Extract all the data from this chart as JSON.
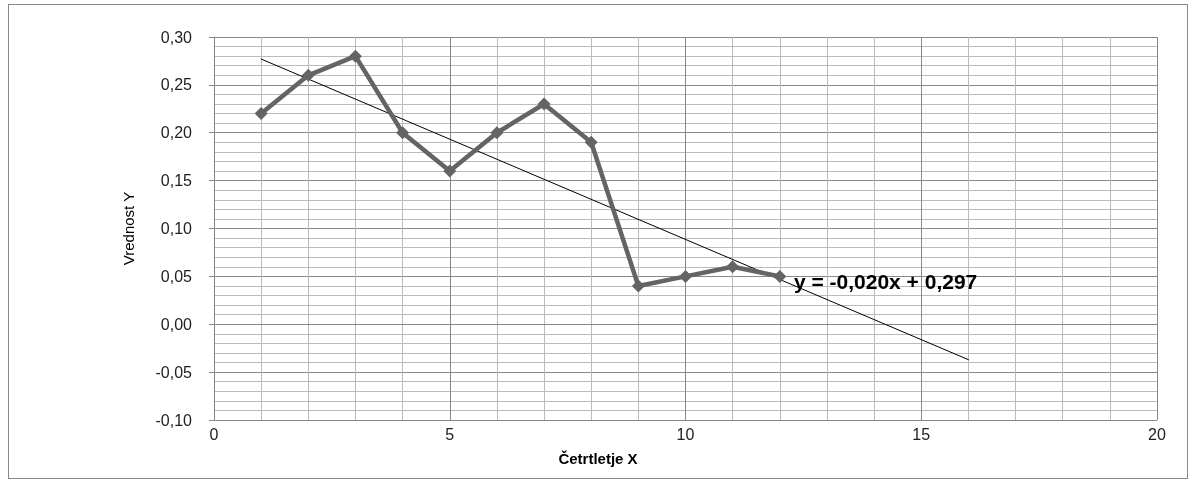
{
  "chart_data": {
    "type": "line",
    "xlabel": "Četrtletje X",
    "ylabel": "Vrednost Y",
    "x": [
      1,
      2,
      3,
      4,
      5,
      6,
      7,
      8,
      9,
      10,
      11,
      12
    ],
    "series": [
      {
        "color": "#646464",
        "values": [
          0.22,
          0.26,
          0.28,
          0.2,
          0.16,
          0.2,
          0.23,
          0.19,
          0.04,
          0.05,
          0.06,
          0.05
        ]
      },
      {
        "type": "line",
        "x": [
          1,
          16
        ],
        "values": [
          0.277,
          -0.037
        ],
        "color": "#000000",
        "marker": "none"
      }
    ],
    "xlim": [
      0,
      20
    ],
    "xticks": [
      0,
      5,
      10,
      15,
      20
    ],
    "ylim": [
      -0.1,
      0.3
    ],
    "yticks": [
      {
        "value": -0.1,
        "label": "-0,10"
      },
      {
        "value": -0.05,
        "label": "-0,05"
      },
      {
        "value": 0,
        "label": "0,00"
      },
      {
        "value": 0.05,
        "label": "0,05"
      },
      {
        "value": 0.1,
        "label": "0,10"
      },
      {
        "value": 0.15,
        "label": "0,15"
      },
      {
        "value": 0.2,
        "label": "0,20"
      },
      {
        "value": 0.25,
        "label": "0,25"
      },
      {
        "value": 0.3,
        "label": "0,30"
      }
    ],
    "annotations": [
      {
        "text": "y = -0,020x + 0,297",
        "x": 12.3,
        "y": 0.045
      }
    ],
    "grid": true,
    "marker": "diamond",
    "line_style": "solid"
  }
}
